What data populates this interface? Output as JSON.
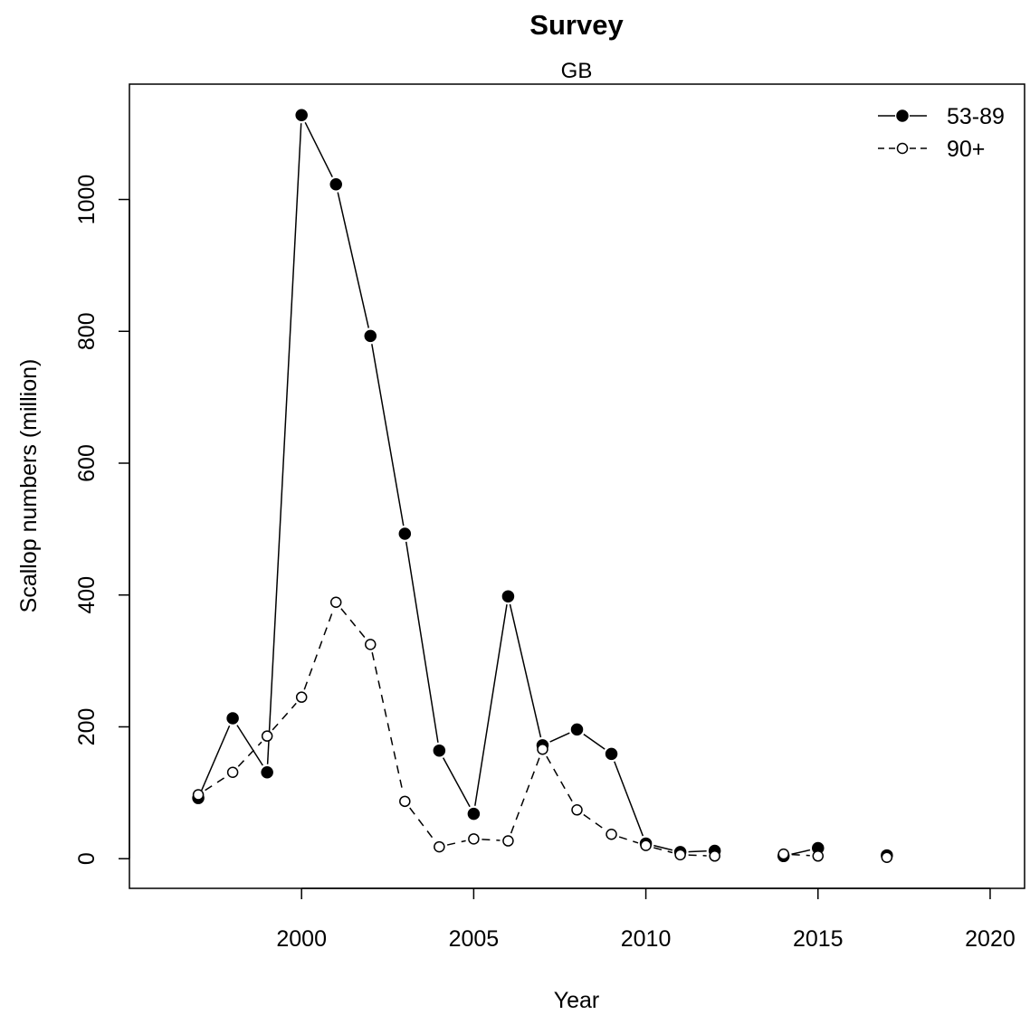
{
  "chart_data": {
    "type": "line",
    "title": "Survey",
    "subtitle": "GB",
    "xlabel": "Year",
    "ylabel": "Scallop numbers (million)",
    "xlim": [
      1995,
      2021
    ],
    "ylim": [
      -45,
      1175
    ],
    "x_ticks": [
      2000,
      2005,
      2010,
      2015,
      2020
    ],
    "y_ticks": [
      0,
      200,
      400,
      600,
      800,
      1000
    ],
    "legend_position": "top-right",
    "grid": false,
    "series": [
      {
        "name": "53-89",
        "line_style": "solid",
        "marker": "filled-circle",
        "segments": [
          [
            [
              1997,
              92
            ],
            [
              1998,
              213
            ],
            [
              1999,
              131
            ],
            [
              2000,
              1128
            ],
            [
              2001,
              1023
            ],
            [
              2002,
              793
            ],
            [
              2003,
              493
            ],
            [
              2004,
              164
            ],
            [
              2005,
              68
            ],
            [
              2006,
              398
            ],
            [
              2007,
              172
            ],
            [
              2008,
              196
            ],
            [
              2009,
              159
            ],
            [
              2010,
              23
            ],
            [
              2011,
              10
            ],
            [
              2012,
              12
            ]
          ],
          [
            [
              2014,
              4
            ],
            [
              2015,
              16
            ]
          ],
          [
            [
              2017,
              5
            ]
          ]
        ]
      },
      {
        "name": "90+",
        "line_style": "dashed",
        "marker": "open-circle",
        "segments": [
          [
            [
              1997,
              97
            ],
            [
              1998,
              131
            ],
            [
              1999,
              186
            ],
            [
              2000,
              245
            ],
            [
              2001,
              389
            ],
            [
              2002,
              325
            ],
            [
              2003,
              87
            ],
            [
              2004,
              18
            ],
            [
              2005,
              30
            ],
            [
              2006,
              27
            ],
            [
              2007,
              166
            ],
            [
              2008,
              74
            ],
            [
              2009,
              37
            ],
            [
              2010,
              20
            ],
            [
              2011,
              6
            ],
            [
              2012,
              4
            ]
          ],
          [
            [
              2014,
              7
            ],
            [
              2015,
              4
            ]
          ],
          [
            [
              2017,
              2
            ]
          ]
        ]
      }
    ]
  }
}
